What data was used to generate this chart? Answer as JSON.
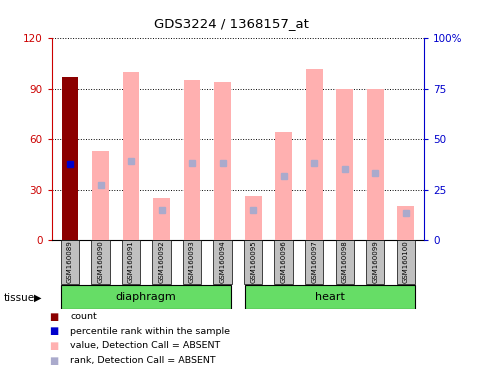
{
  "title": "GDS3224 / 1368157_at",
  "samples": [
    "GSM160089",
    "GSM160090",
    "GSM160091",
    "GSM160092",
    "GSM160093",
    "GSM160094",
    "GSM160095",
    "GSM160096",
    "GSM160097",
    "GSM160098",
    "GSM160099",
    "GSM160100"
  ],
  "value_bars": [
    97,
    53,
    100,
    25,
    95,
    94,
    26,
    64,
    102,
    90,
    90,
    20
  ],
  "rank_bars": [
    45,
    33,
    47,
    18,
    46,
    46,
    18,
    38,
    46,
    42,
    40,
    16
  ],
  "count_bar_idx": 0,
  "count_bar_color": "#8B0000",
  "percentile_rank_color": "#0000CC",
  "absent_value_color": "#FFB0B0",
  "absent_rank_color": "#AAAACC",
  "tissue_groups": [
    {
      "label": "diaphragm",
      "start": 0,
      "end": 5,
      "color": "#66DD66"
    },
    {
      "label": "heart",
      "start": 6,
      "end": 11,
      "color": "#66DD66"
    }
  ],
  "tissue_label": "tissue",
  "ylim_left": [
    0,
    120
  ],
  "ylim_right": [
    0,
    100
  ],
  "yticks_left": [
    0,
    30,
    60,
    90,
    120
  ],
  "yticks_right": [
    0,
    25,
    50,
    75,
    100
  ],
  "yticklabels_right": [
    "0",
    "25",
    "50",
    "75",
    "100%"
  ],
  "left_tick_color": "#CC0000",
  "right_tick_color": "#0000CC",
  "background_color": "#FFFFFF",
  "plot_bg_color": "#FFFFFF",
  "legend_items": [
    {
      "label": "count",
      "color": "#8B0000"
    },
    {
      "label": "percentile rank within the sample",
      "color": "#0000CC"
    },
    {
      "label": "value, Detection Call = ABSENT",
      "color": "#FFB0B0"
    },
    {
      "label": "rank, Detection Call = ABSENT",
      "color": "#AAAACC"
    }
  ],
  "sample_bg_color": "#C0C0C0",
  "bar_width": 0.55
}
